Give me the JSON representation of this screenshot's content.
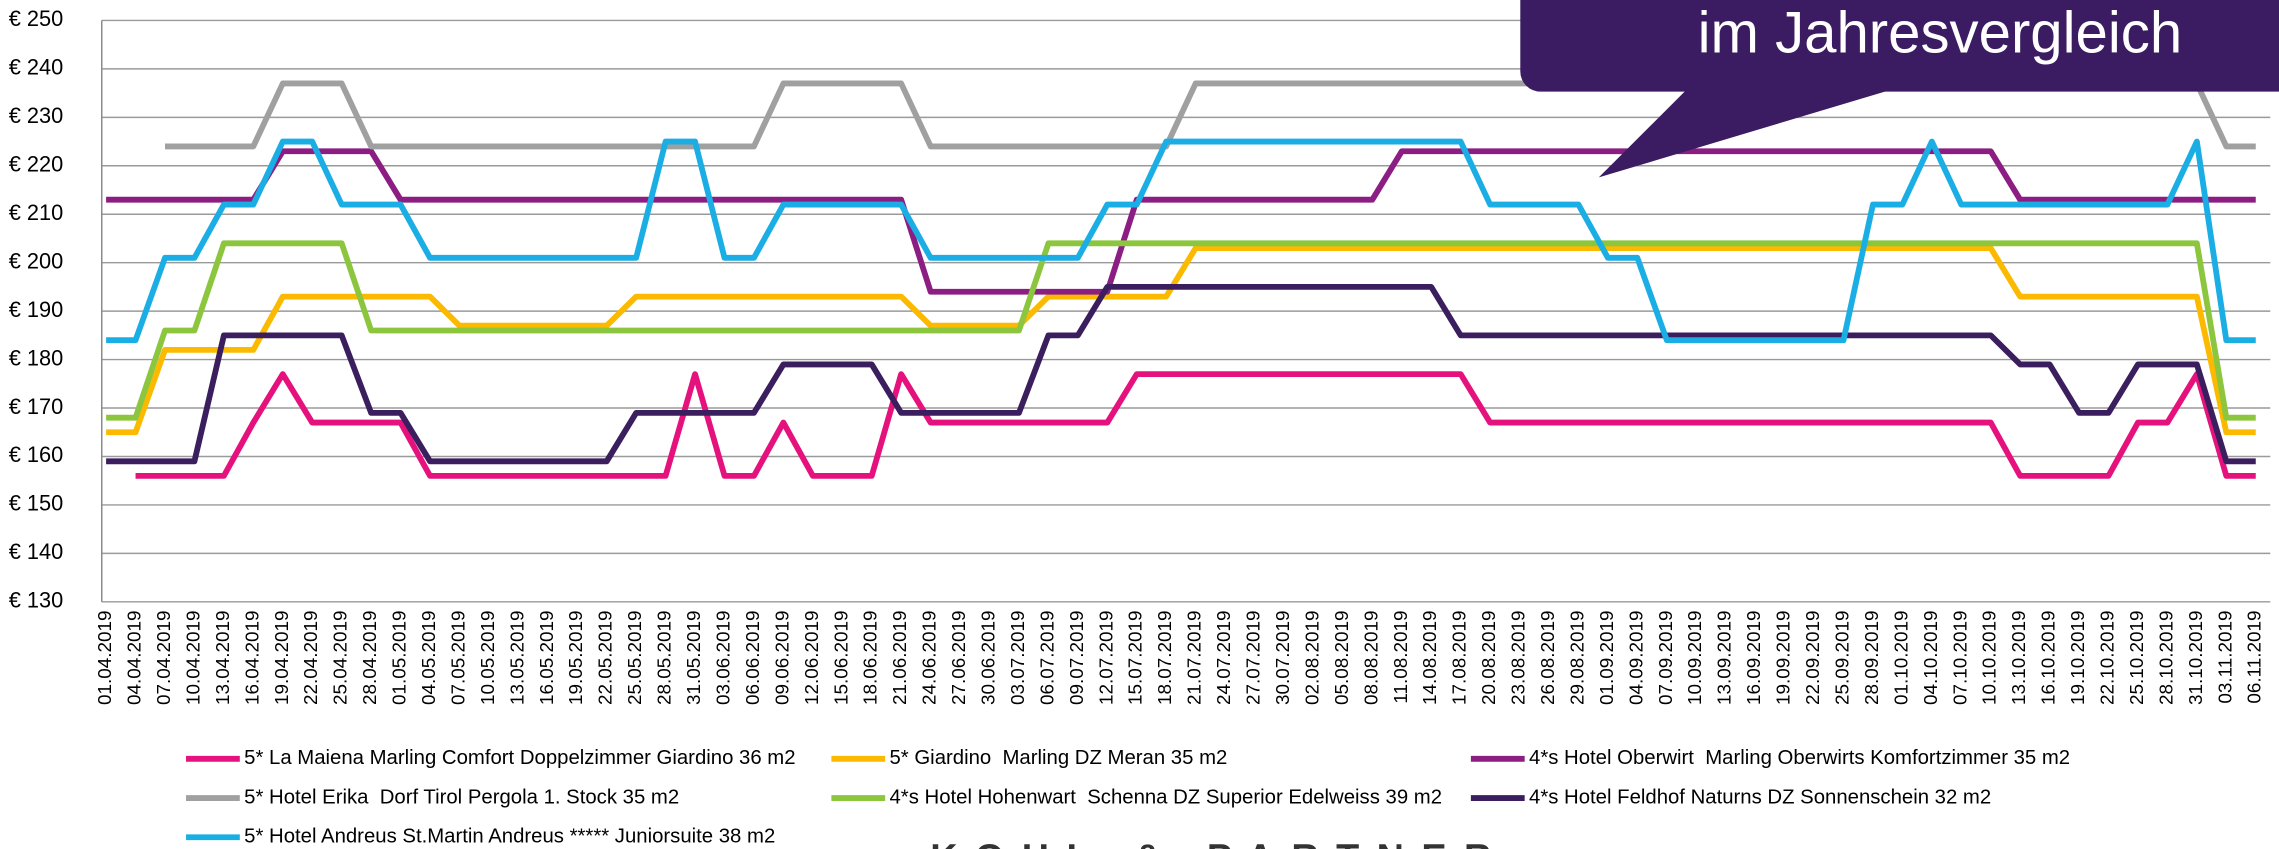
{
  "chart_data": {
    "type": "line",
    "callout": "im Jahresvergleich",
    "logo": "KOHL & PARTNER",
    "categories": [
      "01.04.2019",
      "04.04.2019",
      "07.04.2019",
      "10.04.2019",
      "13.04.2019",
      "16.04.2019",
      "19.04.2019",
      "22.04.2019",
      "25.04.2019",
      "28.04.2019",
      "01.05.2019",
      "04.05.2019",
      "07.05.2019",
      "10.05.2019",
      "13.05.2019",
      "16.05.2019",
      "19.05.2019",
      "22.05.2019",
      "25.05.2019",
      "28.05.2019",
      "31.05.2019",
      "03.06.2019",
      "06.06.2019",
      "09.06.2019",
      "12.06.2019",
      "15.06.2019",
      "18.06.2019",
      "21.06.2019",
      "24.06.2019",
      "27.06.2019",
      "30.06.2019",
      "03.07.2019",
      "06.07.2019",
      "09.07.2019",
      "12.07.2019",
      "15.07.2019",
      "18.07.2019",
      "21.07.2019",
      "24.07.2019",
      "27.07.2019",
      "30.07.2019",
      "02.08.2019",
      "05.08.2019",
      "08.08.2019",
      "11.08.2019",
      "14.08.2019",
      "17.08.2019",
      "20.08.2019",
      "23.08.2019",
      "26.08.2019",
      "29.08.2019",
      "01.09.2019",
      "04.09.2019",
      "07.09.2019",
      "10.09.2019",
      "13.09.2019",
      "16.09.2019",
      "19.09.2019",
      "22.09.2019",
      "25.09.2019",
      "28.09.2019",
      "01.10.2019",
      "04.10.2019",
      "07.10.2019",
      "10.10.2019",
      "13.10.2019",
      "16.10.2019",
      "19.10.2019",
      "22.10.2019",
      "25.10.2019",
      "28.10.2019",
      "31.10.2019",
      "03.11.2019",
      "06.11.2019"
    ],
    "ylim": [
      130,
      250
    ],
    "yticks": [
      {
        "value": 130,
        "label": "€ 130"
      },
      {
        "value": 140,
        "label": "€ 140"
      },
      {
        "value": 150,
        "label": "€ 150"
      },
      {
        "value": 160,
        "label": "€ 160"
      },
      {
        "value": 170,
        "label": "€ 170"
      },
      {
        "value": 180,
        "label": "€ 180"
      },
      {
        "value": 190,
        "label": "€ 190"
      },
      {
        "value": 200,
        "label": "€ 200"
      },
      {
        "value": 210,
        "label": "€ 210"
      },
      {
        "value": 220,
        "label": "€ 220"
      },
      {
        "value": 230,
        "label": "€ 230"
      },
      {
        "value": 240,
        "label": "€ 240"
      },
      {
        "value": 250,
        "label": "€ 250"
      }
    ],
    "grid": true,
    "series": [
      {
        "name": "5* La Maiena Marling Comfort Doppelzimmer Giardino 36 m2",
        "color": "#e5127d",
        "values": [
          null,
          156,
          156,
          156,
          156,
          167,
          177,
          167,
          167,
          167,
          167,
          156,
          156,
          156,
          156,
          156,
          156,
          156,
          156,
          156,
          177,
          156,
          156,
          167,
          156,
          156,
          156,
          177,
          167,
          167,
          167,
          167,
          167,
          167,
          167,
          177,
          177,
          177,
          177,
          177,
          177,
          177,
          177,
          177,
          177,
          177,
          177,
          167,
          167,
          167,
          167,
          167,
          167,
          167,
          167,
          167,
          167,
          167,
          167,
          167,
          167,
          167,
          167,
          167,
          167,
          156,
          156,
          156,
          156,
          167,
          167,
          177,
          156,
          156
        ]
      },
      {
        "name": "5* Giardino  Marling DZ Meran 35 m2",
        "color": "#fbba00",
        "values": [
          165,
          165,
          182,
          182,
          182,
          182,
          193,
          193,
          193,
          193,
          193,
          193,
          187,
          187,
          187,
          187,
          187,
          187,
          193,
          193,
          193,
          193,
          193,
          193,
          193,
          193,
          193,
          193,
          187,
          187,
          187,
          187,
          193,
          193,
          193,
          193,
          193,
          203,
          203,
          203,
          203,
          203,
          203,
          203,
          203,
          203,
          203,
          203,
          203,
          203,
          203,
          203,
          203,
          203,
          203,
          203,
          203,
          203,
          203,
          203,
          203,
          203,
          203,
          203,
          203,
          193,
          193,
          193,
          193,
          193,
          193,
          193,
          165,
          165
        ]
      },
      {
        "name": "4*s Hotel Oberwirt  Marling Oberwirts Komfortzimmer 35 m2",
        "color": "#8c1d82",
        "values": [
          213,
          213,
          213,
          213,
          213,
          213,
          223,
          223,
          223,
          223,
          213,
          213,
          213,
          213,
          213,
          213,
          213,
          213,
          213,
          213,
          213,
          213,
          213,
          213,
          213,
          213,
          213,
          213,
          194,
          194,
          194,
          194,
          194,
          194,
          194,
          213,
          213,
          213,
          213,
          213,
          213,
          213,
          213,
          213,
          223,
          223,
          223,
          223,
          223,
          223,
          223,
          223,
          223,
          223,
          223,
          223,
          223,
          223,
          223,
          223,
          223,
          223,
          223,
          223,
          223,
          213,
          213,
          213,
          213,
          213,
          213,
          213,
          213,
          213
        ]
      },
      {
        "name": "5* Hotel Erika  Dorf Tirol Pergola 1. Stock 35 m2",
        "color": "#a0a0a0",
        "values": [
          null,
          null,
          224,
          224,
          224,
          224,
          237,
          237,
          237,
          224,
          224,
          224,
          224,
          224,
          224,
          224,
          224,
          224,
          224,
          224,
          224,
          224,
          224,
          237,
          237,
          237,
          237,
          237,
          224,
          224,
          224,
          224,
          224,
          224,
          224,
          224,
          224,
          237,
          237,
          237,
          237,
          237,
          237,
          237,
          237,
          237,
          237,
          237,
          237,
          237,
          237,
          237,
          237,
          237,
          237,
          237,
          237,
          237,
          237,
          237,
          237,
          237,
          237,
          237,
          237,
          237,
          237,
          237,
          237,
          237,
          237,
          237,
          224,
          224
        ]
      },
      {
        "name": "4*s Hotel Hohenwart  Schenna DZ Superior Edelweiss 39 m2",
        "color": "#8cc63e",
        "values": [
          168,
          168,
          186,
          186,
          204,
          204,
          204,
          204,
          204,
          186,
          186,
          186,
          186,
          186,
          186,
          186,
          186,
          186,
          186,
          186,
          186,
          186,
          186,
          186,
          186,
          186,
          186,
          186,
          186,
          186,
          186,
          186,
          204,
          204,
          204,
          204,
          204,
          204,
          204,
          204,
          204,
          204,
          204,
          204,
          204,
          204,
          204,
          204,
          204,
          204,
          204,
          204,
          204,
          204,
          204,
          204,
          204,
          204,
          204,
          204,
          204,
          204,
          204,
          204,
          204,
          204,
          204,
          204,
          204,
          204,
          204,
          204,
          168,
          168
        ]
      },
      {
        "name": "4*s Hotel Feldhof Naturns DZ Sonnenschein 32 m2",
        "color": "#3b1e5e",
        "values": [
          159,
          159,
          159,
          159,
          185,
          185,
          185,
          185,
          185,
          169,
          169,
          159,
          159,
          159,
          159,
          159,
          159,
          159,
          169,
          169,
          169,
          169,
          169,
          179,
          179,
          179,
          179,
          169,
          169,
          169,
          169,
          169,
          185,
          185,
          195,
          195,
          195,
          195,
          195,
          195,
          195,
          195,
          195,
          195,
          195,
          195,
          185,
          185,
          185,
          185,
          185,
          185,
          185,
          185,
          185,
          185,
          185,
          185,
          185,
          185,
          185,
          185,
          185,
          185,
          185,
          179,
          179,
          169,
          169,
          179,
          179,
          179,
          159,
          159
        ]
      },
      {
        "name": "5* Hotel Andreus St.Martin Andreus ***** Juniorsuite 38 m2",
        "color": "#1aaee5",
        "values": [
          184,
          184,
          201,
          201,
          212,
          212,
          225,
          225,
          212,
          212,
          212,
          201,
          201,
          201,
          201,
          201,
          201,
          201,
          201,
          225,
          225,
          201,
          201,
          212,
          212,
          212,
          212,
          212,
          201,
          201,
          201,
          201,
          201,
          201,
          212,
          212,
          225,
          225,
          225,
          225,
          225,
          225,
          225,
          225,
          225,
          225,
          225,
          212,
          212,
          212,
          212,
          201,
          201,
          184,
          184,
          184,
          184,
          184,
          184,
          184,
          212,
          212,
          225,
          212,
          212,
          212,
          212,
          212,
          212,
          212,
          212,
          225,
          184,
          184
        ]
      }
    ]
  }
}
